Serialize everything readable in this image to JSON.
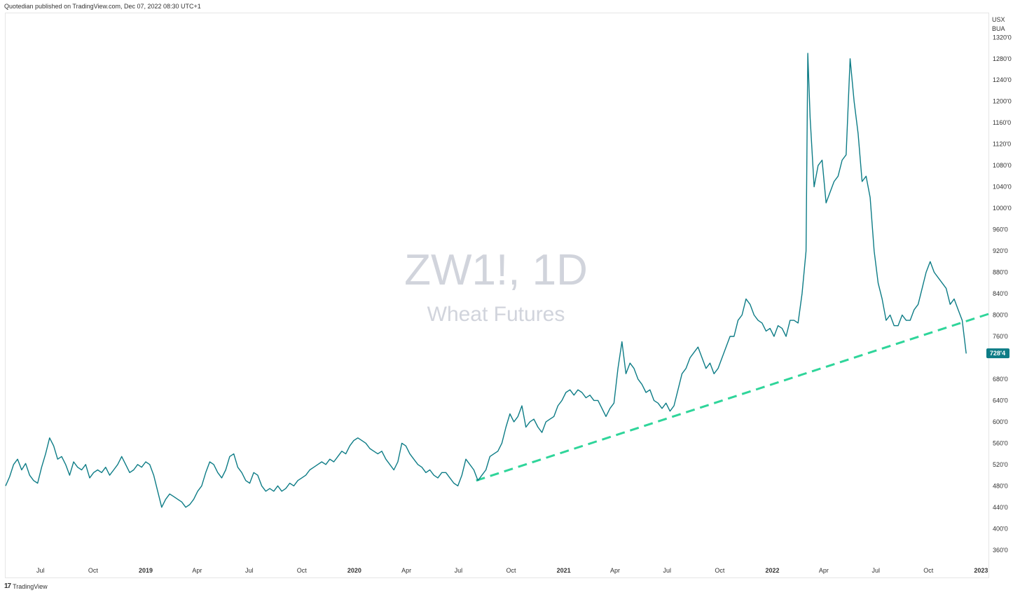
{
  "header": {
    "publisher": "Quotedian published on TradingView.com, Dec 07, 2022 08:30 UTC+1"
  },
  "footer": {
    "brand": "TradingView",
    "logo_glyph": "17"
  },
  "colors": {
    "price_line": "#0d7c86",
    "trendline": "#2fd59a",
    "price_tag": "#0d7c86",
    "watermark": "#d1d4dc"
  },
  "chart_data": {
    "type": "line",
    "symbol_watermark": "ZW1!, 1D",
    "name_watermark": "Wheat Futures",
    "currency": [
      "USX",
      "BUA"
    ],
    "ylim": [
      340,
      1365
    ],
    "xlim": [
      "2018-05-01",
      "2023-01-14"
    ],
    "y_ticks": [
      {
        "v": 360,
        "label": "360'0"
      },
      {
        "v": 400,
        "label": "400'0"
      },
      {
        "v": 440,
        "label": "440'0"
      },
      {
        "v": 480,
        "label": "480'0"
      },
      {
        "v": 520,
        "label": "520'0"
      },
      {
        "v": 560,
        "label": "560'0"
      },
      {
        "v": 600,
        "label": "600'0"
      },
      {
        "v": 640,
        "label": "640'0"
      },
      {
        "v": 680,
        "label": "680'0"
      },
      {
        "v": 760,
        "label": "760'0"
      },
      {
        "v": 800,
        "label": "800'0"
      },
      {
        "v": 840,
        "label": "840'0"
      },
      {
        "v": 880,
        "label": "880'0"
      },
      {
        "v": 920,
        "label": "920'0"
      },
      {
        "v": 960,
        "label": "960'0"
      },
      {
        "v": 1000,
        "label": "1000'0"
      },
      {
        "v": 1040,
        "label": "1040'0"
      },
      {
        "v": 1080,
        "label": "1080'0"
      },
      {
        "v": 1120,
        "label": "1120'0"
      },
      {
        "v": 1160,
        "label": "1160'0"
      },
      {
        "v": 1200,
        "label": "1200'0"
      },
      {
        "v": 1240,
        "label": "1240'0"
      },
      {
        "v": 1280,
        "label": "1280'0"
      },
      {
        "v": 1320,
        "label": "1320'0"
      }
    ],
    "x_ticks": [
      {
        "d": "2018-07-01",
        "label": "Jul",
        "year": false
      },
      {
        "d": "2018-10-01",
        "label": "Oct",
        "year": false
      },
      {
        "d": "2019-01-01",
        "label": "2019",
        "year": true
      },
      {
        "d": "2019-04-01",
        "label": "Apr",
        "year": false
      },
      {
        "d": "2019-07-01",
        "label": "Jul",
        "year": false
      },
      {
        "d": "2019-10-01",
        "label": "Oct",
        "year": false
      },
      {
        "d": "2020-01-01",
        "label": "2020",
        "year": true
      },
      {
        "d": "2020-04-01",
        "label": "Apr",
        "year": false
      },
      {
        "d": "2020-07-01",
        "label": "Jul",
        "year": false
      },
      {
        "d": "2020-10-01",
        "label": "Oct",
        "year": false
      },
      {
        "d": "2021-01-01",
        "label": "2021",
        "year": true
      },
      {
        "d": "2021-04-01",
        "label": "Apr",
        "year": false
      },
      {
        "d": "2021-07-01",
        "label": "Jul",
        "year": false
      },
      {
        "d": "2021-10-01",
        "label": "Oct",
        "year": false
      },
      {
        "d": "2022-01-01",
        "label": "2022",
        "year": true
      },
      {
        "d": "2022-04-01",
        "label": "Apr",
        "year": false
      },
      {
        "d": "2022-07-01",
        "label": "Jul",
        "year": false
      },
      {
        "d": "2022-10-01",
        "label": "Oct",
        "year": false
      },
      {
        "d": "2023-01-01",
        "label": "2023",
        "year": true
      }
    ],
    "last_price": {
      "value": 728.4,
      "label": "728'4"
    },
    "trendline": {
      "x": [
        "2020-08-01",
        "2023-01-14"
      ],
      "y": [
        490,
        802
      ],
      "style": "dashed"
    },
    "series": [
      {
        "x": [
          "2018-05-01",
          "2018-05-08",
          "2018-05-15",
          "2018-05-22",
          "2018-05-29",
          "2018-06-05",
          "2018-06-12",
          "2018-06-19",
          "2018-06-26",
          "2018-07-03",
          "2018-07-10",
          "2018-07-17",
          "2018-07-24",
          "2018-07-31",
          "2018-08-07",
          "2018-08-14",
          "2018-08-21",
          "2018-08-28",
          "2018-09-04",
          "2018-09-11",
          "2018-09-18",
          "2018-09-25",
          "2018-10-02",
          "2018-10-09",
          "2018-10-16",
          "2018-10-23",
          "2018-10-30",
          "2018-11-06",
          "2018-11-13",
          "2018-11-20",
          "2018-11-27",
          "2018-12-04",
          "2018-12-11",
          "2018-12-18",
          "2018-12-25",
          "2019-01-01",
          "2019-01-08",
          "2019-01-15",
          "2019-01-22",
          "2019-01-29",
          "2019-02-05",
          "2019-02-12",
          "2019-02-19",
          "2019-02-26",
          "2019-03-05",
          "2019-03-12",
          "2019-03-19",
          "2019-03-26",
          "2019-04-02",
          "2019-04-09",
          "2019-04-16",
          "2019-04-23",
          "2019-04-30",
          "2019-05-07",
          "2019-05-14",
          "2019-05-21",
          "2019-05-28",
          "2019-06-04",
          "2019-06-11",
          "2019-06-18",
          "2019-06-25",
          "2019-07-02",
          "2019-07-09",
          "2019-07-16",
          "2019-07-23",
          "2019-07-30",
          "2019-08-06",
          "2019-08-13",
          "2019-08-20",
          "2019-08-27",
          "2019-09-03",
          "2019-09-10",
          "2019-09-17",
          "2019-09-24",
          "2019-10-01",
          "2019-10-08",
          "2019-10-15",
          "2019-10-22",
          "2019-10-29",
          "2019-11-05",
          "2019-11-12",
          "2019-11-19",
          "2019-11-26",
          "2019-12-03",
          "2019-12-10",
          "2019-12-17",
          "2019-12-24",
          "2019-12-31",
          "2020-01-07",
          "2020-01-14",
          "2020-01-21",
          "2020-01-28",
          "2020-02-04",
          "2020-02-11",
          "2020-02-18",
          "2020-02-25",
          "2020-03-03",
          "2020-03-10",
          "2020-03-17",
          "2020-03-24",
          "2020-03-31",
          "2020-04-07",
          "2020-04-14",
          "2020-04-21",
          "2020-04-28",
          "2020-05-05",
          "2020-05-12",
          "2020-05-19",
          "2020-05-26",
          "2020-06-02",
          "2020-06-09",
          "2020-06-16",
          "2020-06-23",
          "2020-06-30",
          "2020-07-07",
          "2020-07-14",
          "2020-07-21",
          "2020-07-28",
          "2020-08-04",
          "2020-08-11",
          "2020-08-18",
          "2020-08-25",
          "2020-09-01",
          "2020-09-08",
          "2020-09-15",
          "2020-09-22",
          "2020-09-29",
          "2020-10-06",
          "2020-10-13",
          "2020-10-20",
          "2020-10-27",
          "2020-11-03",
          "2020-11-10",
          "2020-11-17",
          "2020-11-24",
          "2020-12-01",
          "2020-12-08",
          "2020-12-15",
          "2020-12-22",
          "2020-12-29",
          "2021-01-05",
          "2021-01-12",
          "2021-01-19",
          "2021-01-26",
          "2021-02-02",
          "2021-02-09",
          "2021-02-16",
          "2021-02-23",
          "2021-03-02",
          "2021-03-09",
          "2021-03-16",
          "2021-03-23",
          "2021-03-30",
          "2021-04-06",
          "2021-04-13",
          "2021-04-20",
          "2021-04-27",
          "2021-05-04",
          "2021-05-11",
          "2021-05-18",
          "2021-05-25",
          "2021-06-01",
          "2021-06-08",
          "2021-06-15",
          "2021-06-22",
          "2021-06-29",
          "2021-07-06",
          "2021-07-13",
          "2021-07-20",
          "2021-07-27",
          "2021-08-03",
          "2021-08-10",
          "2021-08-17",
          "2021-08-24",
          "2021-08-31",
          "2021-09-07",
          "2021-09-14",
          "2021-09-21",
          "2021-09-28",
          "2021-10-05",
          "2021-10-12",
          "2021-10-19",
          "2021-10-26",
          "2021-11-02",
          "2021-11-09",
          "2021-11-16",
          "2021-11-23",
          "2021-11-30",
          "2021-12-07",
          "2021-12-14",
          "2021-12-21",
          "2021-12-28",
          "2022-01-04",
          "2022-01-11",
          "2022-01-18",
          "2022-01-25",
          "2022-02-01",
          "2022-02-08",
          "2022-02-15",
          "2022-02-22",
          "2022-03-01",
          "2022-03-04",
          "2022-03-08",
          "2022-03-15",
          "2022-03-22",
          "2022-03-29",
          "2022-04-05",
          "2022-04-12",
          "2022-04-19",
          "2022-04-26",
          "2022-05-03",
          "2022-05-10",
          "2022-05-17",
          "2022-05-24",
          "2022-05-31",
          "2022-06-07",
          "2022-06-14",
          "2022-06-21",
          "2022-06-28",
          "2022-07-05",
          "2022-07-12",
          "2022-07-19",
          "2022-07-26",
          "2022-08-02",
          "2022-08-09",
          "2022-08-16",
          "2022-08-23",
          "2022-08-30",
          "2022-09-06",
          "2022-09-13",
          "2022-09-20",
          "2022-09-27",
          "2022-10-04",
          "2022-10-11",
          "2022-10-18",
          "2022-10-25",
          "2022-11-01",
          "2022-11-08",
          "2022-11-15",
          "2022-11-22",
          "2022-11-29",
          "2022-12-06"
        ],
        "values": [
          480,
          497,
          520,
          530,
          510,
          522,
          500,
          490,
          485,
          515,
          540,
          570,
          555,
          530,
          535,
          520,
          500,
          525,
          515,
          510,
          520,
          495,
          505,
          510,
          505,
          515,
          500,
          510,
          520,
          535,
          520,
          505,
          510,
          520,
          515,
          525,
          520,
          500,
          470,
          440,
          455,
          465,
          460,
          455,
          450,
          440,
          445,
          455,
          470,
          480,
          505,
          525,
          520,
          505,
          495,
          510,
          535,
          540,
          515,
          505,
          490,
          485,
          505,
          500,
          480,
          470,
          475,
          470,
          480,
          470,
          475,
          485,
          480,
          490,
          495,
          500,
          510,
          515,
          520,
          525,
          520,
          530,
          525,
          535,
          545,
          540,
          555,
          565,
          570,
          565,
          560,
          550,
          545,
          540,
          545,
          530,
          520,
          510,
          525,
          560,
          555,
          540,
          530,
          520,
          515,
          505,
          510,
          500,
          495,
          505,
          505,
          495,
          485,
          480,
          500,
          530,
          520,
          510,
          490,
          500,
          510,
          535,
          540,
          545,
          560,
          590,
          615,
          600,
          610,
          630,
          590,
          600,
          605,
          590,
          580,
          600,
          605,
          610,
          630,
          640,
          655,
          660,
          650,
          660,
          655,
          645,
          650,
          640,
          640,
          625,
          610,
          625,
          635,
          700,
          750,
          690,
          710,
          700,
          680,
          670,
          655,
          660,
          640,
          635,
          625,
          635,
          620,
          630,
          660,
          690,
          700,
          720,
          730,
          740,
          720,
          700,
          710,
          690,
          700,
          720,
          740,
          760,
          760,
          790,
          800,
          830,
          820,
          800,
          790,
          785,
          770,
          775,
          760,
          780,
          775,
          760,
          790,
          790,
          785,
          840,
          920,
          1290,
          1170,
          1040,
          1080,
          1090,
          1010,
          1030,
          1050,
          1060,
          1090,
          1100,
          1280,
          1200,
          1140,
          1050,
          1060,
          1020,
          920,
          860,
          830,
          790,
          800,
          780,
          780,
          800,
          790,
          790,
          810,
          820,
          850,
          880,
          900,
          880,
          870,
          860,
          850,
          820,
          830,
          810,
          790,
          728
        ],
        "name": ""
      }
    ]
  }
}
